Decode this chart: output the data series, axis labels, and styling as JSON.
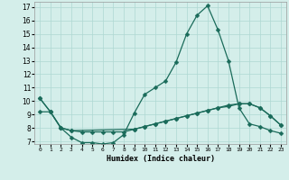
{
  "xlabel": "Humidex (Indice chaleur)",
  "bg_color": "#d4eeea",
  "grid_color": "#aed8d2",
  "line_color": "#1a6b5a",
  "xlim": [
    -0.5,
    23.5
  ],
  "ylim": [
    6.8,
    17.4
  ],
  "yticks": [
    7,
    8,
    9,
    10,
    11,
    12,
    13,
    14,
    15,
    16,
    17
  ],
  "xticks": [
    0,
    1,
    2,
    3,
    4,
    5,
    6,
    7,
    8,
    9,
    10,
    11,
    12,
    13,
    14,
    15,
    16,
    17,
    18,
    19,
    20,
    21,
    22,
    23
  ],
  "series1_x": [
    0,
    1,
    2,
    3,
    4,
    5,
    6,
    7,
    8,
    9,
    10,
    11,
    12,
    13,
    14,
    15,
    16,
    17,
    18,
    19,
    20,
    21,
    22,
    23
  ],
  "series1_y": [
    10.2,
    9.2,
    8.0,
    7.3,
    6.9,
    6.9,
    6.8,
    6.9,
    7.5,
    9.1,
    10.5,
    11.0,
    11.5,
    12.9,
    15.0,
    16.4,
    17.1,
    15.3,
    13.0,
    9.5,
    8.3,
    8.1,
    7.8,
    7.6
  ],
  "series2_x": [
    0,
    1,
    2,
    3,
    4,
    5,
    6,
    7,
    8,
    9,
    10,
    11,
    12,
    13,
    14,
    15,
    16,
    17,
    18,
    19,
    20,
    21,
    22,
    23
  ],
  "series2_y": [
    9.2,
    9.2,
    8.0,
    7.8,
    7.7,
    7.7,
    7.7,
    7.7,
    7.7,
    7.9,
    8.1,
    8.3,
    8.5,
    8.7,
    8.9,
    9.1,
    9.3,
    9.5,
    9.6,
    9.8,
    9.8,
    9.5,
    8.9,
    8.2
  ],
  "series3_x": [
    0,
    1,
    2,
    3,
    9,
    10,
    11,
    12,
    13,
    14,
    15,
    16,
    17,
    18,
    19,
    20,
    21,
    22,
    23
  ],
  "series3_y": [
    10.2,
    9.2,
    8.0,
    7.8,
    7.9,
    8.1,
    8.3,
    8.5,
    8.7,
    8.9,
    9.1,
    9.3,
    9.5,
    9.7,
    9.8,
    9.8,
    9.5,
    8.9,
    8.2
  ],
  "marker_size": 2.5,
  "line_width": 0.9
}
